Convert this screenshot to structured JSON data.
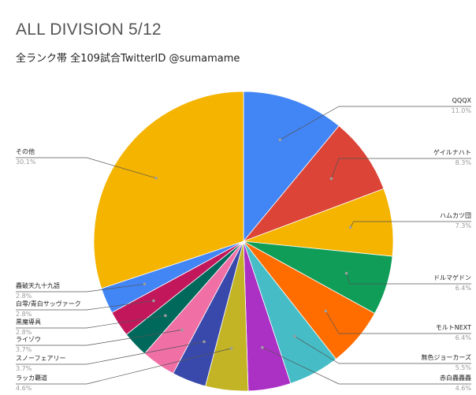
{
  "chart_data": {
    "type": "pie",
    "title": "ALL DIVISION 5/12",
    "subtitle": "全ランク帯 全109試合TwitterID @sumamame",
    "slices": [
      {
        "label": "QQQX",
        "pct_label": "11.0%",
        "value": 11.0,
        "color": "#4285f4"
      },
      {
        "label": "ゲイルナハト",
        "pct_label": "8.3%",
        "value": 8.3,
        "color": "#db4437"
      },
      {
        "label": "ハムカツ団",
        "pct_label": "7.3%",
        "value": 7.3,
        "color": "#f4b400"
      },
      {
        "label": "ドルマゲドン",
        "pct_label": "6.4%",
        "value": 6.4,
        "color": "#0f9d58"
      },
      {
        "label": "モルトNEXT",
        "pct_label": "6.4%",
        "value": 6.4,
        "color": "#ff6d00"
      },
      {
        "label": "無色ジョーカーズ",
        "pct_label": "5.5%",
        "value": 5.5,
        "color": "#46bdc6"
      },
      {
        "label": "赤白轟轟轟",
        "pct_label": "4.6%",
        "value": 4.6,
        "color": "#ab30c4"
      },
      {
        "label": "ラッカ覇道",
        "pct_label": "4.6%",
        "value": 4.6,
        "color": "#c2b425"
      },
      {
        "label": "スノーフェアリー",
        "pct_label": "3.7%",
        "value": 3.7,
        "color": "#3949ab"
      },
      {
        "label": "ライゾウ",
        "pct_label": "3.7%",
        "value": 3.7,
        "color": "#f06fa5"
      },
      {
        "label": "黒魔導具",
        "pct_label": "2.8%",
        "value": 2.8,
        "color": "#00695c"
      },
      {
        "label": "白零/青白サッヴァーク",
        "pct_label": "2.8%",
        "value": 2.8,
        "color": "#c2185b"
      },
      {
        "label": "轟破天九十九語",
        "pct_label": "2.8%",
        "value": 2.8,
        "color": "#4285f4"
      },
      {
        "label": "その他",
        "pct_label": "30.1%",
        "value": 30.1,
        "color": "#f4b400"
      }
    ]
  }
}
